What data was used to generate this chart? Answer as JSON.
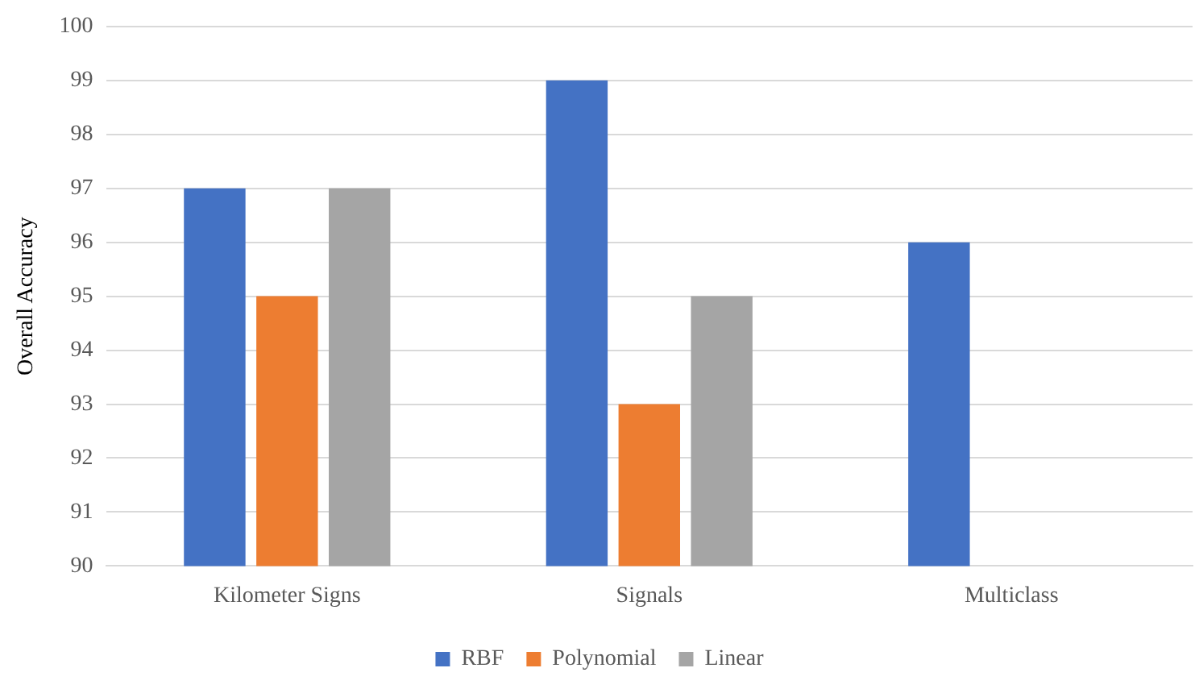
{
  "chart_data": {
    "type": "bar",
    "ylabel": "Overall Accuracy",
    "categories": [
      "Kilometer Signs",
      "Signals",
      "Multiclass"
    ],
    "series": [
      {
        "name": "RBF",
        "color": "#4472c4",
        "values": [
          97,
          99,
          96
        ]
      },
      {
        "name": "Polynomial",
        "color": "#ed7d31",
        "values": [
          95,
          93,
          null
        ]
      },
      {
        "name": "Linear",
        "color": "#a5a5a5",
        "values": [
          97,
          95,
          null
        ]
      }
    ],
    "ylim": [
      90,
      100
    ],
    "yticks": [
      90,
      91,
      92,
      93,
      94,
      95,
      96,
      97,
      98,
      99,
      100
    ],
    "grid": "y",
    "legend": "bottom"
  }
}
